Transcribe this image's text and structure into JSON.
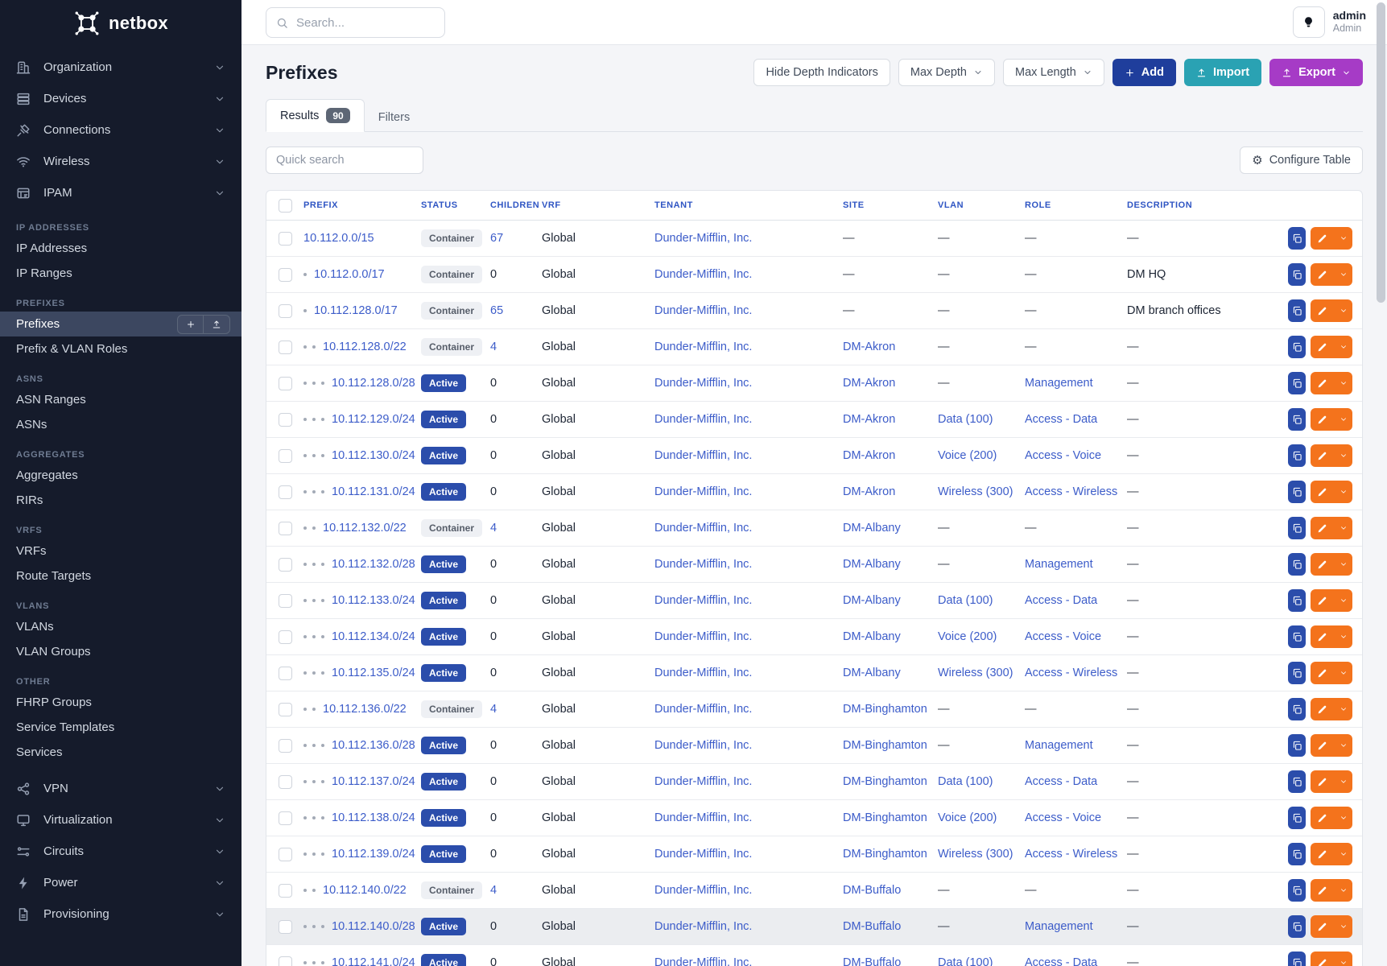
{
  "brand": {
    "name": "netbox"
  },
  "topbar": {
    "search_placeholder": "Search...",
    "user": {
      "name": "admin",
      "role": "Admin"
    }
  },
  "sidebar": {
    "menus": [
      {
        "label": "Organization",
        "icon": "organization"
      },
      {
        "label": "Devices",
        "icon": "devices"
      },
      {
        "label": "Connections",
        "icon": "connections"
      },
      {
        "label": "Wireless",
        "icon": "wireless"
      },
      {
        "label": "IPAM",
        "icon": "ipam"
      }
    ],
    "sections": [
      {
        "label": "IP Addresses",
        "items": [
          {
            "label": "IP Addresses"
          },
          {
            "label": "IP Ranges"
          }
        ]
      },
      {
        "label": "Prefixes",
        "items": [
          {
            "label": "Prefixes",
            "active": true,
            "actions": [
              "plus",
              "upload"
            ]
          },
          {
            "label": "Prefix & VLAN Roles"
          }
        ]
      },
      {
        "label": "ASNs",
        "items": [
          {
            "label": "ASN Ranges"
          },
          {
            "label": "ASNs"
          }
        ]
      },
      {
        "label": "Aggregates",
        "items": [
          {
            "label": "Aggregates"
          },
          {
            "label": "RIRs"
          }
        ]
      },
      {
        "label": "VRFs",
        "items": [
          {
            "label": "VRFs"
          },
          {
            "label": "Route Targets"
          }
        ]
      },
      {
        "label": "VLANs",
        "items": [
          {
            "label": "VLANs"
          },
          {
            "label": "VLAN Groups"
          }
        ]
      },
      {
        "label": "Other",
        "items": [
          {
            "label": "FHRP Groups"
          },
          {
            "label": "Service Templates"
          },
          {
            "label": "Services"
          }
        ]
      }
    ],
    "footer_menus": [
      {
        "label": "VPN",
        "icon": "vpn"
      },
      {
        "label": "Virtualization",
        "icon": "virtualization"
      },
      {
        "label": "Circuits",
        "icon": "circuits"
      },
      {
        "label": "Power",
        "icon": "power"
      },
      {
        "label": "Provisioning",
        "icon": "provisioning"
      }
    ]
  },
  "page": {
    "title": "Prefixes",
    "toolbar": {
      "hide_depth": "Hide Depth Indicators",
      "max_depth": "Max Depth",
      "max_length": "Max Length",
      "add": "Add",
      "import": "Import",
      "export": "Export"
    },
    "tabs": [
      {
        "label": "Results",
        "count": "90",
        "active": true
      },
      {
        "label": "Filters",
        "active": false
      }
    ],
    "quick_search_placeholder": "Quick search",
    "configure_table": "Configure Table"
  },
  "table": {
    "columns": [
      "Prefix",
      "Status",
      "Children",
      "VRF",
      "Tenant",
      "Site",
      "VLAN",
      "Role",
      "Description"
    ],
    "rows": [
      {
        "depth": 0,
        "prefix": "10.112.0.0/15",
        "status": "Container",
        "children": "67",
        "children_link": true,
        "vrf": "Global",
        "tenant": "Dunder-Mifflin, Inc.",
        "site": "—",
        "vlan": "—",
        "role": "—",
        "description": "—"
      },
      {
        "depth": 1,
        "prefix": "10.112.0.0/17",
        "status": "Container",
        "children": "0",
        "children_link": false,
        "vrf": "Global",
        "tenant": "Dunder-Mifflin, Inc.",
        "site": "—",
        "vlan": "—",
        "role": "—",
        "description": "DM HQ"
      },
      {
        "depth": 1,
        "prefix": "10.112.128.0/17",
        "status": "Container",
        "children": "65",
        "children_link": true,
        "vrf": "Global",
        "tenant": "Dunder-Mifflin, Inc.",
        "site": "—",
        "vlan": "—",
        "role": "—",
        "description": "DM branch offices"
      },
      {
        "depth": 2,
        "prefix": "10.112.128.0/22",
        "status": "Container",
        "children": "4",
        "children_link": true,
        "vrf": "Global",
        "tenant": "Dunder-Mifflin, Inc.",
        "site": "DM-Akron",
        "vlan": "—",
        "role": "—",
        "description": "—"
      },
      {
        "depth": 3,
        "prefix": "10.112.128.0/28",
        "status": "Active",
        "children": "0",
        "children_link": false,
        "vrf": "Global",
        "tenant": "Dunder-Mifflin, Inc.",
        "site": "DM-Akron",
        "vlan": "—",
        "role": "Management",
        "description": "—"
      },
      {
        "depth": 3,
        "prefix": "10.112.129.0/24",
        "status": "Active",
        "children": "0",
        "children_link": false,
        "vrf": "Global",
        "tenant": "Dunder-Mifflin, Inc.",
        "site": "DM-Akron",
        "vlan": "Data (100)",
        "role": "Access - Data",
        "description": "—"
      },
      {
        "depth": 3,
        "prefix": "10.112.130.0/24",
        "status": "Active",
        "children": "0",
        "children_link": false,
        "vrf": "Global",
        "tenant": "Dunder-Mifflin, Inc.",
        "site": "DM-Akron",
        "vlan": "Voice (200)",
        "role": "Access - Voice",
        "description": "—"
      },
      {
        "depth": 3,
        "prefix": "10.112.131.0/24",
        "status": "Active",
        "children": "0",
        "children_link": false,
        "vrf": "Global",
        "tenant": "Dunder-Mifflin, Inc.",
        "site": "DM-Akron",
        "vlan": "Wireless (300)",
        "role": "Access - Wireless",
        "description": "—"
      },
      {
        "depth": 2,
        "prefix": "10.112.132.0/22",
        "status": "Container",
        "children": "4",
        "children_link": true,
        "vrf": "Global",
        "tenant": "Dunder-Mifflin, Inc.",
        "site": "DM-Albany",
        "vlan": "—",
        "role": "—",
        "description": "—"
      },
      {
        "depth": 3,
        "prefix": "10.112.132.0/28",
        "status": "Active",
        "children": "0",
        "children_link": false,
        "vrf": "Global",
        "tenant": "Dunder-Mifflin, Inc.",
        "site": "DM-Albany",
        "vlan": "—",
        "role": "Management",
        "description": "—"
      },
      {
        "depth": 3,
        "prefix": "10.112.133.0/24",
        "status": "Active",
        "children": "0",
        "children_link": false,
        "vrf": "Global",
        "tenant": "Dunder-Mifflin, Inc.",
        "site": "DM-Albany",
        "vlan": "Data (100)",
        "role": "Access - Data",
        "description": "—"
      },
      {
        "depth": 3,
        "prefix": "10.112.134.0/24",
        "status": "Active",
        "children": "0",
        "children_link": false,
        "vrf": "Global",
        "tenant": "Dunder-Mifflin, Inc.",
        "site": "DM-Albany",
        "vlan": "Voice (200)",
        "role": "Access - Voice",
        "description": "—"
      },
      {
        "depth": 3,
        "prefix": "10.112.135.0/24",
        "status": "Active",
        "children": "0",
        "children_link": false,
        "vrf": "Global",
        "tenant": "Dunder-Mifflin, Inc.",
        "site": "DM-Albany",
        "vlan": "Wireless (300)",
        "role": "Access - Wireless",
        "description": "—"
      },
      {
        "depth": 2,
        "prefix": "10.112.136.0/22",
        "status": "Container",
        "children": "4",
        "children_link": true,
        "vrf": "Global",
        "tenant": "Dunder-Mifflin, Inc.",
        "site": "DM-Binghamton",
        "vlan": "—",
        "role": "—",
        "description": "—"
      },
      {
        "depth": 3,
        "prefix": "10.112.136.0/28",
        "status": "Active",
        "children": "0",
        "children_link": false,
        "vrf": "Global",
        "tenant": "Dunder-Mifflin, Inc.",
        "site": "DM-Binghamton",
        "vlan": "—",
        "role": "Management",
        "description": "—"
      },
      {
        "depth": 3,
        "prefix": "10.112.137.0/24",
        "status": "Active",
        "children": "0",
        "children_link": false,
        "vrf": "Global",
        "tenant": "Dunder-Mifflin, Inc.",
        "site": "DM-Binghamton",
        "vlan": "Data (100)",
        "role": "Access - Data",
        "description": "—"
      },
      {
        "depth": 3,
        "prefix": "10.112.138.0/24",
        "status": "Active",
        "children": "0",
        "children_link": false,
        "vrf": "Global",
        "tenant": "Dunder-Mifflin, Inc.",
        "site": "DM-Binghamton",
        "vlan": "Voice (200)",
        "role": "Access - Voice",
        "description": "—"
      },
      {
        "depth": 3,
        "prefix": "10.112.139.0/24",
        "status": "Active",
        "children": "0",
        "children_link": false,
        "vrf": "Global",
        "tenant": "Dunder-Mifflin, Inc.",
        "site": "DM-Binghamton",
        "vlan": "Wireless (300)",
        "role": "Access - Wireless",
        "description": "—"
      },
      {
        "depth": 2,
        "prefix": "10.112.140.0/22",
        "status": "Container",
        "children": "4",
        "children_link": true,
        "vrf": "Global",
        "tenant": "Dunder-Mifflin, Inc.",
        "site": "DM-Buffalo",
        "vlan": "—",
        "role": "—",
        "description": "—"
      },
      {
        "depth": 3,
        "prefix": "10.112.140.0/28",
        "status": "Active",
        "children": "0",
        "children_link": false,
        "vrf": "Global",
        "tenant": "Dunder-Mifflin, Inc.",
        "site": "DM-Buffalo",
        "vlan": "—",
        "role": "Management",
        "description": "—",
        "highlight": true
      },
      {
        "depth": 3,
        "prefix": "10.112.141.0/24",
        "status": "Active",
        "children": "0",
        "children_link": false,
        "vrf": "Global",
        "tenant": "Dunder-Mifflin, Inc.",
        "site": "DM-Buffalo",
        "vlan": "Data (100)",
        "role": "Access - Data",
        "description": "—"
      }
    ]
  },
  "colors": {
    "sidebar_bg": "#151b2b",
    "link_blue": "#3c5cc9",
    "header_blue": "#2f55c3",
    "active_badge": "#2b4dab",
    "container_badge_bg": "#eef0f4",
    "add_button": "#1f3e9c",
    "import_button": "#2aa2b3",
    "export_button": "#a63bc6",
    "edit_orange": "#f4731c"
  }
}
